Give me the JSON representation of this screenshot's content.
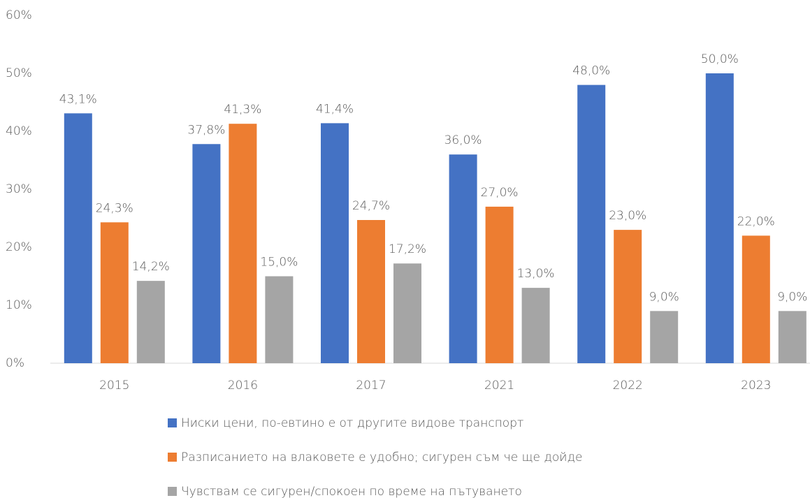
{
  "chart_data": {
    "type": "bar",
    "categories": [
      "2015",
      "2016",
      "2017",
      "2021",
      "2022",
      "2023"
    ],
    "series": [
      {
        "name": "Ниски цени, по-евтино е от другите видове транспорт",
        "color": "#4472c4",
        "values": [
          43.1,
          37.8,
          41.4,
          36.0,
          48.0,
          50.0
        ],
        "value_labels": [
          "43,1%",
          "37,8%",
          "41,4%",
          "36,0%",
          "48,0%",
          "50,0%"
        ]
      },
      {
        "name": "Разписанието на влаковете е удобно; сигурен съм че ще дойде",
        "color": "#ed7d31",
        "values": [
          24.3,
          41.3,
          24.7,
          27.0,
          23.0,
          22.0
        ],
        "value_labels": [
          "24,3%",
          "41,3%",
          "24,7%",
          "27,0%",
          "23,0%",
          "22,0%"
        ]
      },
      {
        "name": "Чувствам се сигурен/спокоен по време на пътуването",
        "color": "#a5a5a5",
        "values": [
          14.2,
          15.0,
          17.2,
          13.0,
          9.0,
          9.0
        ],
        "value_labels": [
          "14,2%",
          "15,0%",
          "17,2%",
          "13,0%",
          "9,0%",
          "9,0%"
        ]
      }
    ],
    "ylim": [
      0,
      60
    ],
    "yticks": [
      {
        "value": 0,
        "label": "0%"
      },
      {
        "value": 10,
        "label": "10%"
      },
      {
        "value": 20,
        "label": "20%"
      },
      {
        "value": 30,
        "label": "30%"
      },
      {
        "value": 40,
        "label": "40%"
      },
      {
        "value": 50,
        "label": "50%"
      },
      {
        "value": 60,
        "label": "60%"
      }
    ],
    "grid": false,
    "legend": "bottom"
  }
}
